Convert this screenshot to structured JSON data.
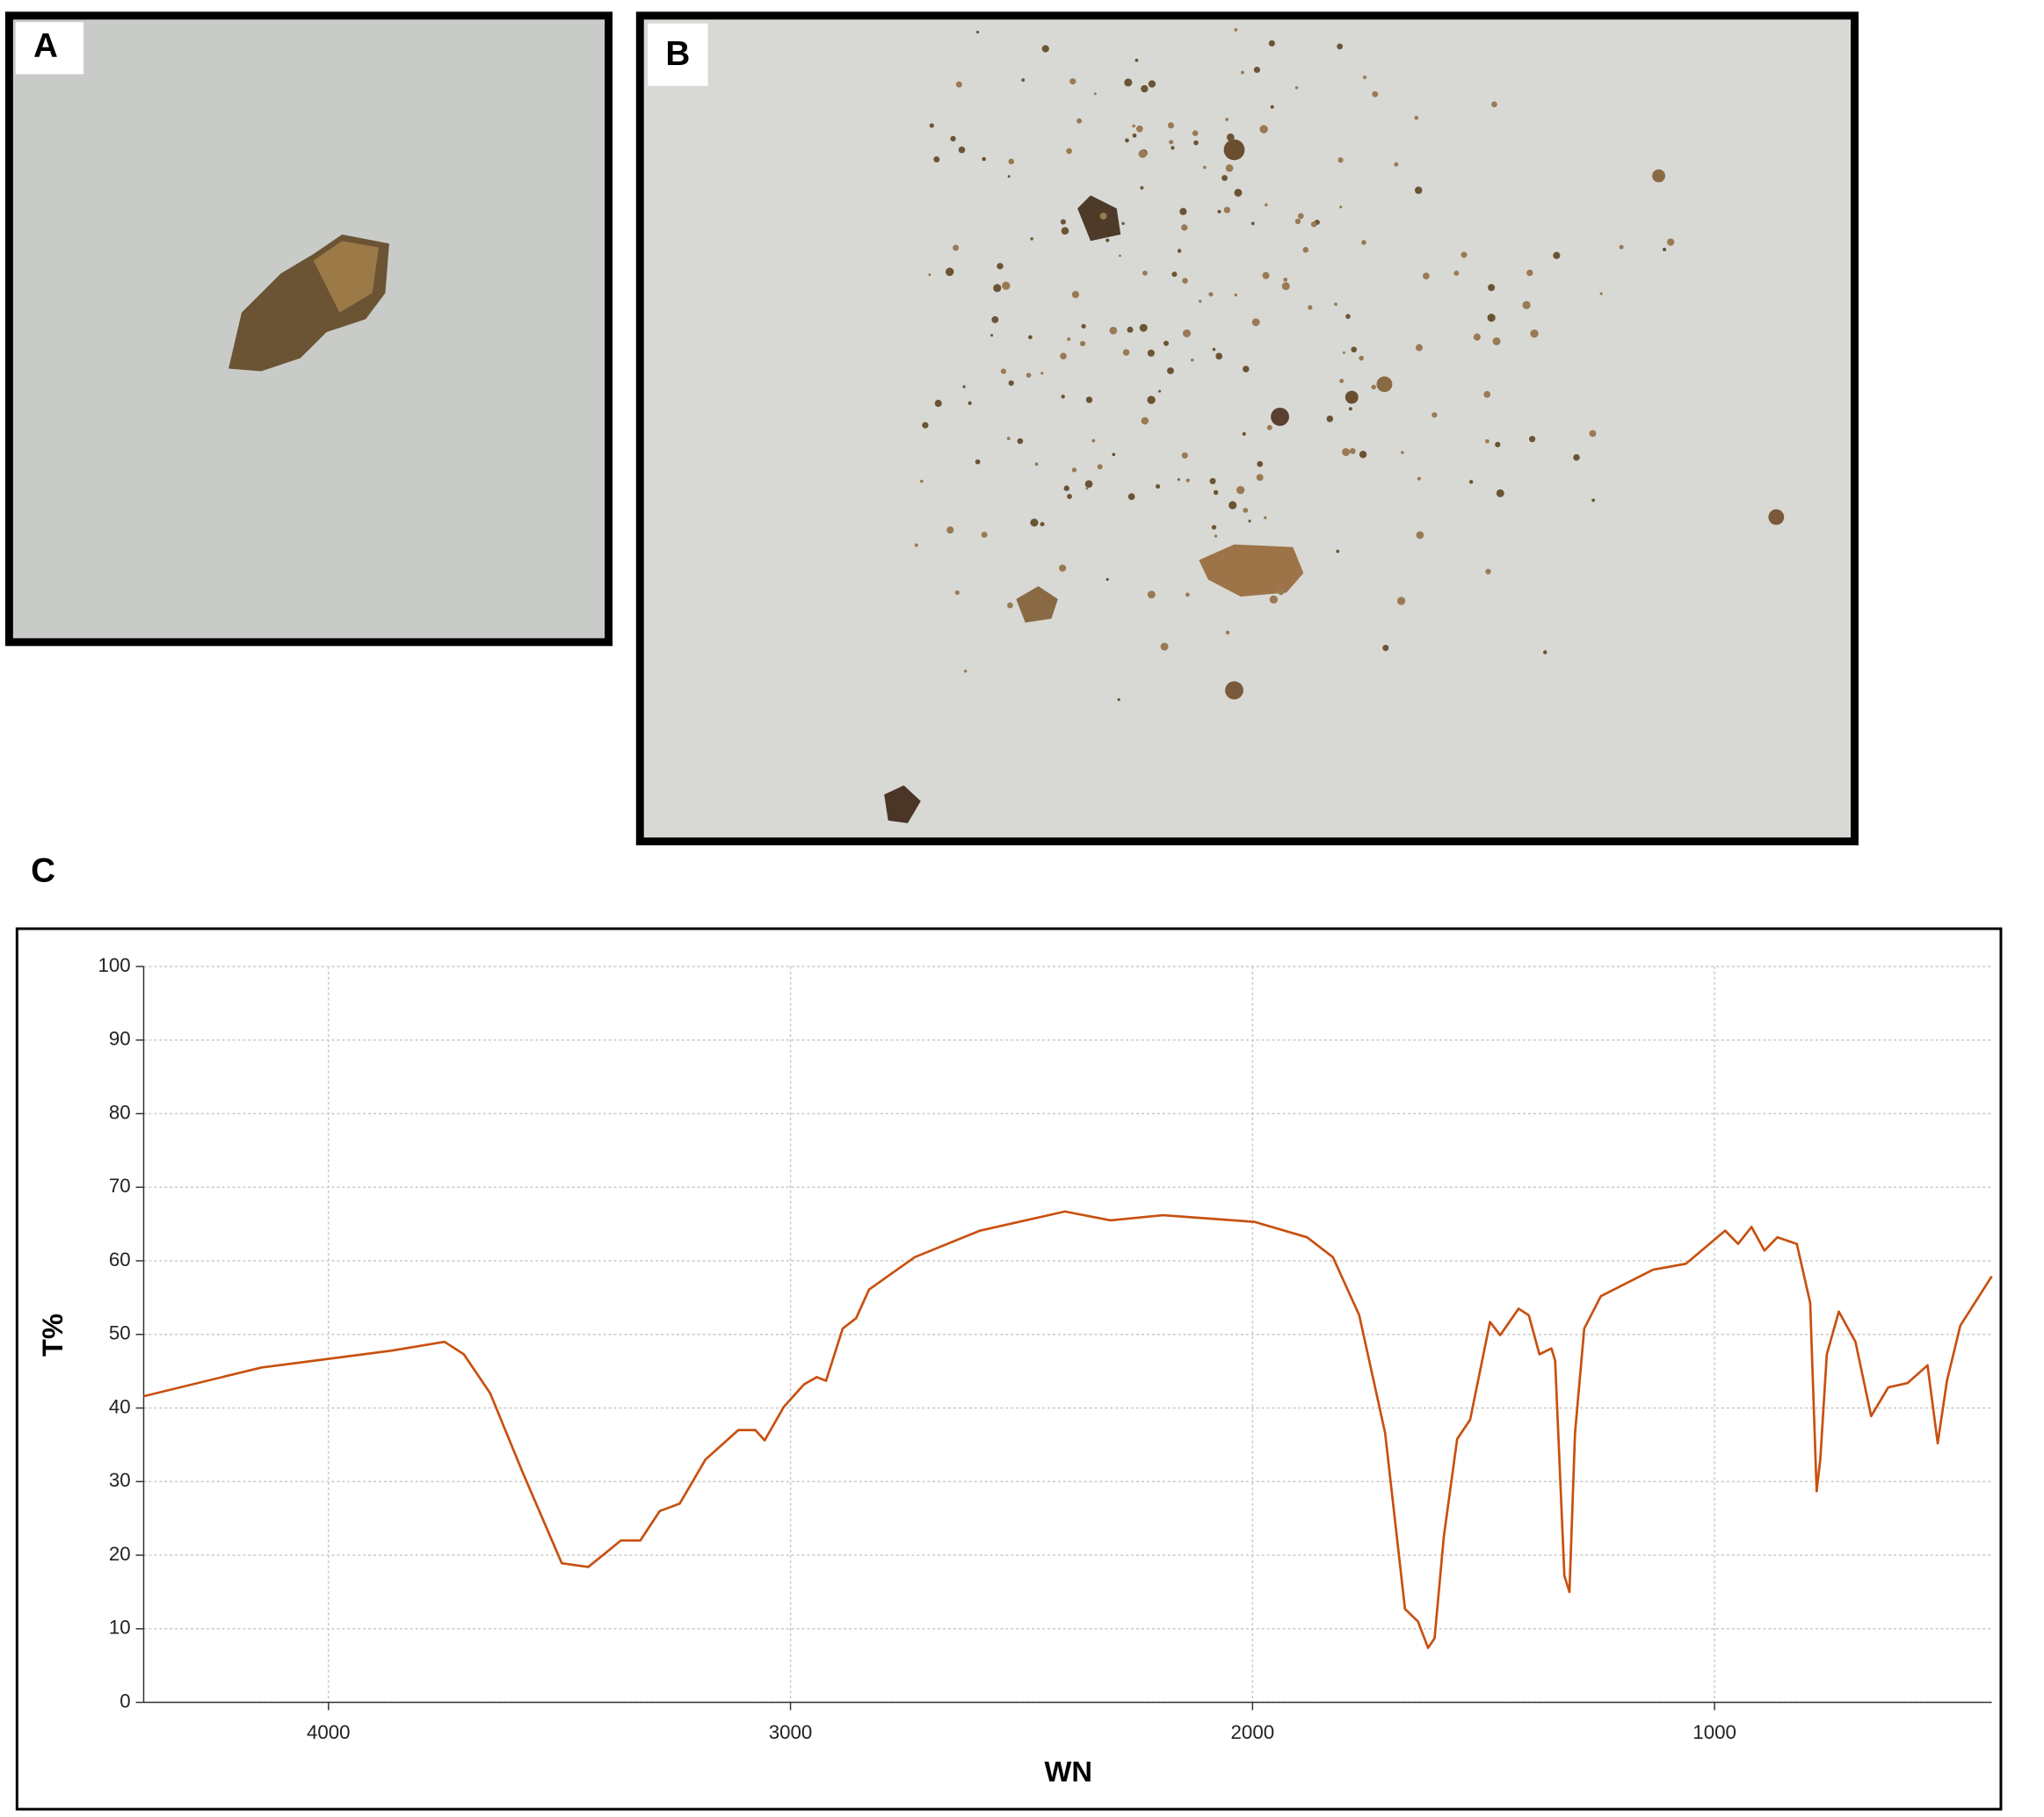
{
  "panels": {
    "a": "A",
    "b": "B",
    "c": "C"
  },
  "chart_data": {
    "type": "line",
    "xlabel": "WN",
    "ylabel": "T%",
    "color": "#c8500f",
    "x": [
      4400,
      4145,
      3863,
      3749,
      3707,
      3650,
      3580,
      3495,
      3438,
      3410,
      3367,
      3325,
      3283,
      3240,
      3184,
      3113,
      3076,
      3056,
      3014,
      2971,
      2943,
      2923,
      2887,
      2858,
      2830,
      2731,
      2590,
      2406,
      2307,
      2194,
      1996,
      1882,
      1826,
      1769,
      1713,
      1670,
      1642,
      1620,
      1606,
      1586,
      1557,
      1529,
      1486,
      1464,
      1424,
      1402,
      1379,
      1353,
      1345,
      1325,
      1314,
      1302,
      1282,
      1246,
      1133,
      1062,
      977,
      949,
      920,
      892,
      864,
      822,
      793,
      779,
      771,
      757,
      731,
      695,
      661,
      624,
      582,
      539,
      517,
      497,
      468,
      400
    ],
    "values": [
      41.6,
      45.5,
      47.8,
      49,
      47.3,
      42,
      31.3,
      18.9,
      18.4,
      19.8,
      22,
      22,
      26,
      27,
      33,
      37,
      37,
      35.6,
      40.2,
      43.2,
      44.2,
      43.7,
      50.8,
      52.2,
      56.1,
      60.5,
      64.1,
      66.7,
      65.5,
      66.2,
      65.3,
      63.2,
      60.5,
      52.6,
      36.6,
      12.7,
      11,
      7.4,
      8.7,
      22.5,
      35.8,
      38.4,
      51.7,
      49.9,
      53.5,
      52.6,
      47.3,
      48.1,
      46.4,
      17.2,
      15,
      36.6,
      50.8,
      55.2,
      58.8,
      59.6,
      64.1,
      62.3,
      64.6,
      61.4,
      63.2,
      62.3,
      54.3,
      28.7,
      33.1,
      47.3,
      53.1,
      49,
      38.9,
      42.8,
      43.4,
      45.8,
      35.2,
      43.7,
      51.2,
      57.9
    ],
    "xlim": [
      4400,
      400
    ],
    "ylim": [
      0,
      100
    ],
    "xticks": [
      4000,
      3000,
      2000,
      1000
    ],
    "yticks": [
      0,
      10,
      20,
      30,
      40,
      50,
      60,
      70,
      80,
      90,
      100
    ],
    "grid": true
  }
}
